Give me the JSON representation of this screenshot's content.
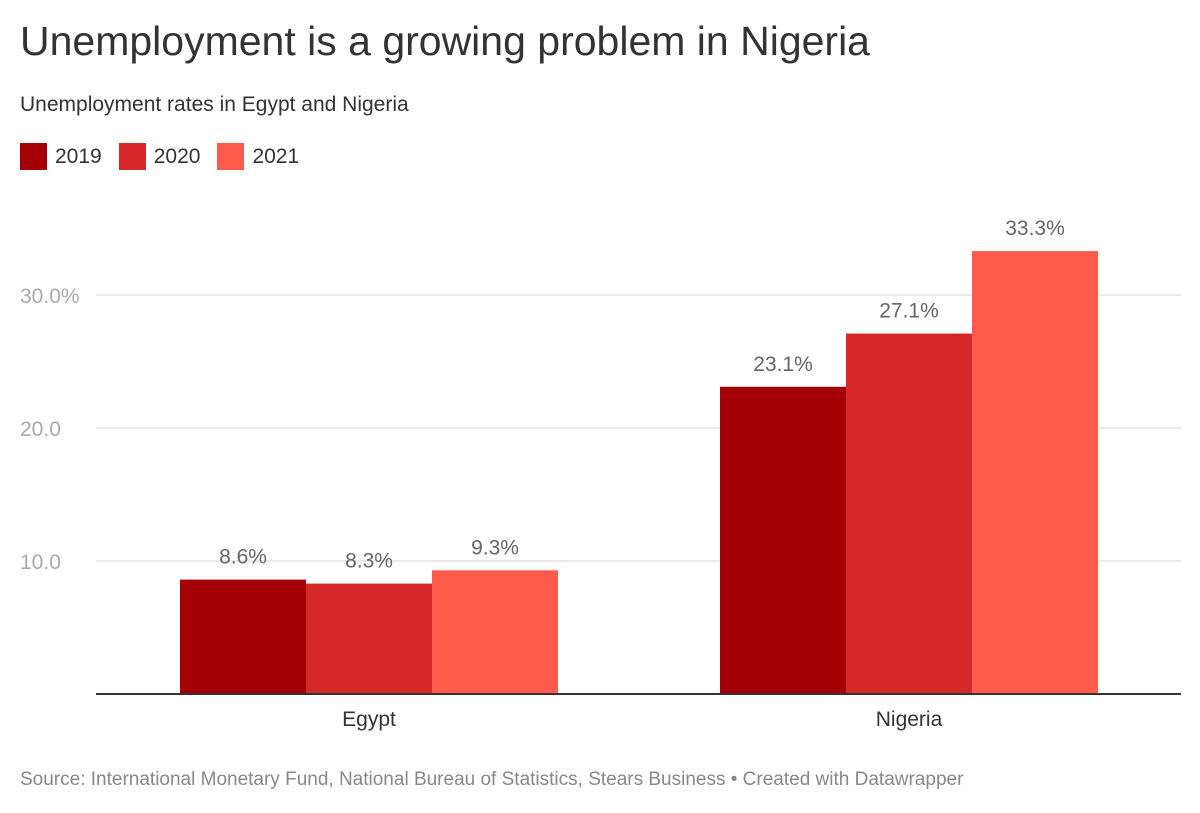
{
  "title": "Unemployment is a growing problem in Nigeria",
  "subtitle": "Unemployment rates in Egypt and Nigeria",
  "legend": [
    {
      "label": "2019",
      "color": "#a50005"
    },
    {
      "label": "2020",
      "color": "#d62828"
    },
    {
      "label": "2021",
      "color": "#ff5a4b"
    }
  ],
  "source": "Source: International Monetary Fund, National Bureau of Statistics, Stears Business • Created with Datawrapper",
  "chart_data": {
    "type": "bar",
    "categories": [
      "Egypt",
      "Nigeria"
    ],
    "series": [
      {
        "name": "2019",
        "values": [
          8.6,
          23.1
        ],
        "labels": [
          "8.6%",
          "23.1%"
        ],
        "color": "#a50005"
      },
      {
        "name": "2020",
        "values": [
          8.3,
          27.1
        ],
        "labels": [
          "8.3%",
          "27.1%"
        ],
        "color": "#d62828"
      },
      {
        "name": "2021",
        "values": [
          9.3,
          33.3
        ],
        "labels": [
          "9.3%",
          "33.3%"
        ],
        "color": "#ff5a4b"
      }
    ],
    "yticks": [
      {
        "value": 10,
        "label": "10.0"
      },
      {
        "value": 20,
        "label": "20.0"
      },
      {
        "value": 30,
        "label": "30.0%"
      }
    ],
    "ylim": [
      0,
      33.3
    ],
    "grid": true,
    "legend_position": "top-left",
    "title": "Unemployment is a growing problem in Nigeria",
    "subtitle": "Unemployment rates in Egypt and Nigeria",
    "xlabel": "",
    "ylabel": ""
  }
}
